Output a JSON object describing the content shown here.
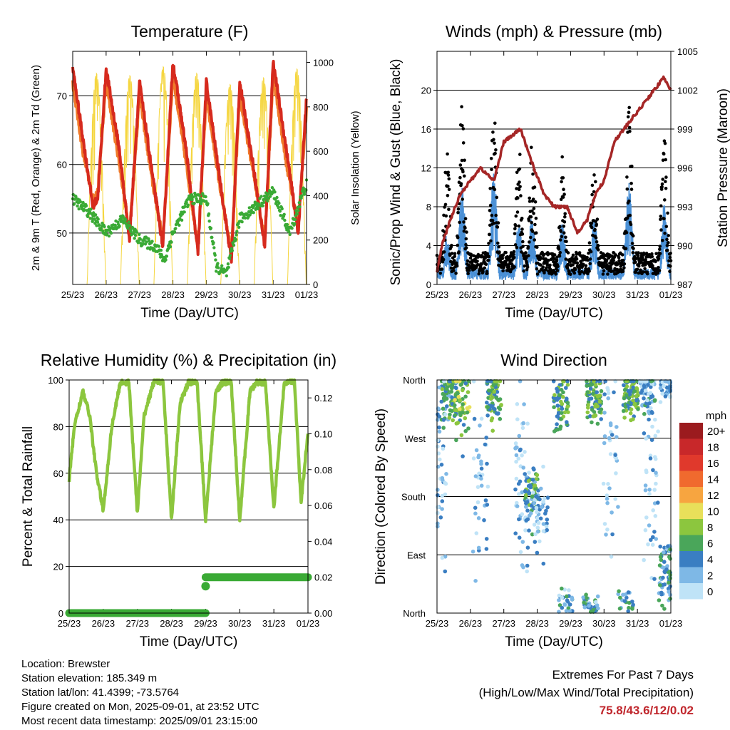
{
  "chart_data": [
    {
      "type": "line",
      "title": "Temperature (F)",
      "xlabel": "Time (Day/UTC)",
      "ylabel": "2m & 9m T (Red, Orange) & 2m Td (Green)",
      "ylabel_right": "Solar Insolation (Yellow)",
      "x_ticks": [
        "25/23",
        "26/23",
        "27/23",
        "28/23",
        "29/23",
        "30/23",
        "31/23",
        "01/23"
      ],
      "ylim": [
        42.5,
        76.5
      ],
      "y_ticks": [
        50,
        60,
        70
      ],
      "ylim_right": [
        0,
        1050
      ],
      "y_ticks_right": [
        0,
        200,
        400,
        600,
        800,
        1000
      ],
      "grid": "horizontal",
      "series": [
        {
          "name": "2m T",
          "color": "#d62a1e",
          "x_days": [
            0,
            0.3,
            0.6,
            0.75,
            1.0,
            1.4,
            1.7,
            2.0,
            2.4,
            2.7,
            3.0,
            3.4,
            3.75,
            4.0,
            4.4,
            4.75,
            5.0,
            5.4,
            5.75,
            6.0,
            6.4,
            6.75,
            7.0
          ],
          "values": [
            74,
            64,
            54,
            55,
            74,
            62,
            49,
            72,
            58,
            48,
            75,
            62,
            47,
            72,
            58,
            46,
            72,
            60,
            48,
            75,
            62,
            50,
            70
          ]
        },
        {
          "name": "9m T",
          "color": "#f07a2a",
          "x_days": [
            0,
            0.3,
            0.6,
            0.75,
            1.0,
            1.4,
            1.7,
            2.0,
            2.4,
            2.7,
            3.0,
            3.4,
            3.75,
            4.0,
            4.4,
            4.75,
            5.0,
            5.4,
            5.75,
            6.0,
            6.4,
            6.75,
            7.0
          ],
          "values": [
            72,
            62,
            55,
            56,
            72,
            60,
            50,
            70,
            57,
            49,
            73,
            60,
            48,
            70,
            57,
            47,
            70,
            59,
            49,
            73,
            60,
            51,
            68
          ]
        },
        {
          "name": "2m Td",
          "color": "#3aaa35",
          "x_days": [
            0,
            0.5,
            1.0,
            1.5,
            2.0,
            2.5,
            2.75,
            3.0,
            3.5,
            4.0,
            4.3,
            4.6,
            5.0,
            5.5,
            6.0,
            6.5,
            6.9,
            7.0
          ],
          "values": [
            55,
            53,
            50,
            52,
            49,
            48,
            46,
            50,
            55,
            55,
            45,
            44,
            52,
            54,
            56,
            50,
            56,
            57
          ]
        },
        {
          "name": "Solar",
          "color": "#f5d640",
          "axis": "right",
          "peaks": [
            {
              "day": 0.71,
              "value": 950
            },
            {
              "day": 1.71,
              "value": 940
            },
            {
              "day": 2.71,
              "value": 980
            },
            {
              "day": 3.71,
              "value": 950
            },
            {
              "day": 4.71,
              "value": 900
            },
            {
              "day": 5.71,
              "value": 930
            },
            {
              "day": 6.71,
              "value": 970
            }
          ]
        }
      ]
    },
    {
      "type": "scatter",
      "title": "Winds (mph) & Pressure (mb)",
      "xlabel": "Time (Day/UTC)",
      "ylabel": "Sonic/Prop Wind & Gust (Blue, Black)",
      "ylabel_right": "Station Pressure (Maroon)",
      "x_ticks": [
        "25/23",
        "26/23",
        "27/23",
        "28/23",
        "29/23",
        "30/23",
        "31/23",
        "01/23"
      ],
      "ylim": [
        0,
        24
      ],
      "y_ticks": [
        0,
        4,
        8,
        12,
        16,
        20
      ],
      "ylim_right": [
        987,
        1005
      ],
      "y_ticks_right": [
        987,
        990,
        993,
        996,
        999,
        1002,
        1005
      ],
      "grid": "horizontal",
      "series": [
        {
          "name": "Gust",
          "color": "#000000",
          "peaks": [
            {
              "day": 0.3,
              "value": 13
            },
            {
              "day": 0.75,
              "value": 17
            },
            {
              "day": 1.7,
              "value": 18
            },
            {
              "day": 2.45,
              "value": 13
            },
            {
              "day": 2.85,
              "value": 14
            },
            {
              "day": 3.75,
              "value": 12
            },
            {
              "day": 4.7,
              "value": 13
            },
            {
              "day": 5.75,
              "value": 17
            },
            {
              "day": 6.8,
              "value": 14
            }
          ]
        },
        {
          "name": "Wind",
          "color": "#4a90d6",
          "peaks": [
            {
              "day": 0.3,
              "value": 5
            },
            {
              "day": 0.75,
              "value": 10
            },
            {
              "day": 1.7,
              "value": 11
            },
            {
              "day": 2.45,
              "value": 6
            },
            {
              "day": 2.85,
              "value": 7
            },
            {
              "day": 3.75,
              "value": 6
            },
            {
              "day": 4.7,
              "value": 7
            },
            {
              "day": 5.75,
              "value": 10
            },
            {
              "day": 6.8,
              "value": 8
            }
          ]
        },
        {
          "name": "Pressure",
          "color": "#a52626",
          "axis": "right",
          "x_days": [
            0,
            0.15,
            0.4,
            0.7,
            1.0,
            1.3,
            1.7,
            2.0,
            2.5,
            2.9,
            3.2,
            3.5,
            3.9,
            4.2,
            4.5,
            4.75,
            5.0,
            5.3,
            5.6,
            5.9,
            6.2,
            6.5,
            6.8,
            7.0
          ],
          "values": [
            988,
            990,
            992,
            994,
            995,
            996,
            995,
            998,
            999,
            996,
            994,
            993,
            993,
            991,
            992,
            994,
            995,
            998,
            999,
            1000,
            1001,
            1002,
            1003,
            1002
          ]
        }
      ]
    },
    {
      "type": "line",
      "title": "Relative Humidity (%) & Precipitation (in)",
      "xlabel": "Time (Day/UTC)",
      "ylabel": "Percent & Total Rainfall",
      "x_ticks": [
        "25/23",
        "26/23",
        "27/23",
        "28/23",
        "29/23",
        "30/23",
        "31/23",
        "01/23"
      ],
      "ylim": [
        0,
        100
      ],
      "y_ticks": [
        0,
        20,
        40,
        60,
        80,
        100
      ],
      "ylim_right": [
        0,
        0.13
      ],
      "y_ticks_right": [
        "0.00",
        "0.02",
        "0.04",
        "0.06",
        "0.08",
        "0.10",
        "0.12"
      ],
      "grid": "horizontal",
      "series": [
        {
          "name": "RH",
          "color": "#8cc63e",
          "x_days": [
            0,
            0.15,
            0.4,
            0.6,
            0.8,
            1.0,
            1.25,
            1.5,
            1.75,
            2.0,
            2.2,
            2.5,
            2.75,
            3.0,
            3.25,
            3.5,
            3.75,
            4.0,
            4.3,
            4.5,
            4.75,
            5.0,
            5.3,
            5.5,
            5.75,
            6.0,
            6.3,
            6.6,
            6.8,
            7.0
          ],
          "values": [
            57,
            80,
            95,
            85,
            60,
            44,
            80,
            99,
            99,
            43,
            85,
            100,
            99,
            40,
            90,
            99,
            99,
            40,
            95,
            99,
            99,
            40,
            95,
            99,
            99,
            45,
            98,
            100,
            47,
            78
          ]
        },
        {
          "name": "Precip",
          "color": "#3aaa35",
          "axis": "right",
          "x_days": [
            0,
            4.0,
            4.0,
            7.0
          ],
          "values": [
            0.0,
            0.0,
            0.02,
            0.02
          ]
        }
      ]
    },
    {
      "type": "scatter",
      "title": "Wind Direction",
      "xlabel": "Time (Day/UTC)",
      "ylabel": "Direction (Colored By Speed)",
      "x_ticks": [
        "25/23",
        "26/23",
        "27/23",
        "28/23",
        "29/23",
        "30/23",
        "31/23",
        "01/23"
      ],
      "y_ticks": [
        "North",
        "East",
        "South",
        "West",
        "North"
      ],
      "grid": "horizontal",
      "legend": {
        "title": "mph",
        "placement": "right",
        "labels": [
          "20+",
          "18",
          "16",
          "14",
          "12",
          "10",
          "8",
          "6",
          "4",
          "2",
          "0"
        ],
        "colors": [
          "#9b1b1e",
          "#c8282a",
          "#e0392c",
          "#f06a2e",
          "#f7a540",
          "#e8e05a",
          "#8cc63e",
          "#4aa65a",
          "#3a7ec2",
          "#7eb8e6",
          "#bfe3f7"
        ]
      }
    }
  ],
  "info": {
    "location": "Location: Brewster",
    "elevation": "Station elevation: 185.349 m",
    "latlon": "Station lat/lon: 41.4399; -73.5764",
    "created": "Figure created on Mon, 2025-09-01, at 23:52 UTC",
    "recent": "Most recent data timestamp: 2025/09/01 23:15:00"
  },
  "extremes": {
    "title": "Extremes For Past 7 Days",
    "subtitle": "(High/Low/Max Wind/Total Precipitation)",
    "values": "75.8/43.6/12/0.02"
  }
}
